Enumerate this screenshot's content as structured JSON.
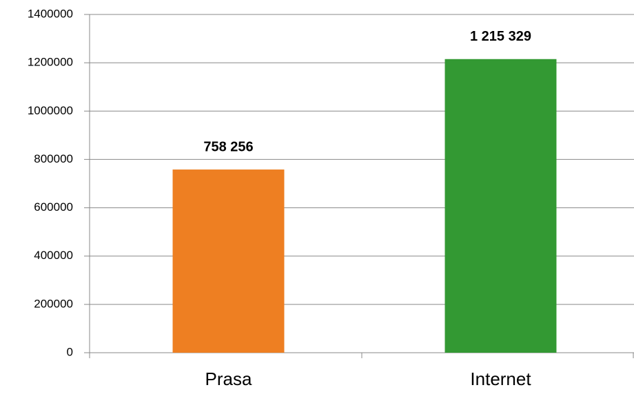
{
  "chart_data": {
    "type": "bar",
    "categories": [
      "Prasa",
      "Internet"
    ],
    "values": [
      758256,
      1215329
    ],
    "value_labels": [
      "758 256",
      "1 215 329"
    ],
    "colors": [
      "#ee7f22",
      "#339933"
    ],
    "ylim": [
      0,
      1400000
    ],
    "yticks": [
      0,
      200000,
      400000,
      600000,
      800000,
      1000000,
      1200000,
      1400000
    ],
    "grid": true
  }
}
